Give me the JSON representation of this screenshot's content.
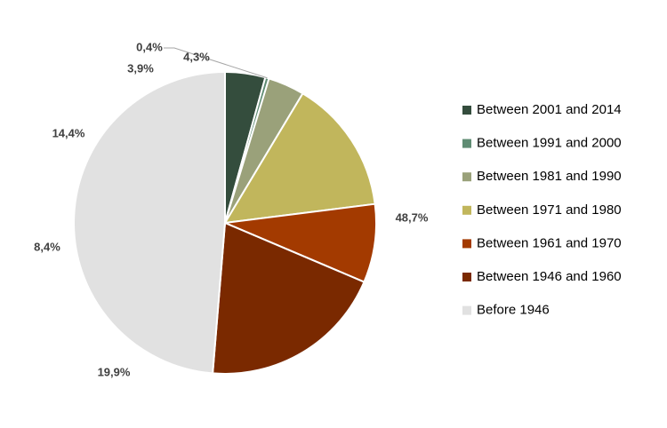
{
  "chart_data": {
    "type": "pie",
    "title": "",
    "legend_position": "right",
    "start_angle_deg": 0,
    "direction": "clockwise",
    "slices": [
      {
        "name": "Between 2001 and 2014",
        "value": 4.3,
        "label": "4,3%",
        "color": "#344d3d"
      },
      {
        "name": "Between 1991 and 2000",
        "value": 0.4,
        "label": "0,4%",
        "color": "#5f8c73"
      },
      {
        "name": "Between 1981 and 1990",
        "value": 3.9,
        "label": "3,9%",
        "color": "#9aa17a"
      },
      {
        "name": "Between 1971 and 1980",
        "value": 14.4,
        "label": "14,4%",
        "color": "#c1b65c"
      },
      {
        "name": "Between 1961 and 1970",
        "value": 8.4,
        "label": "8,4%",
        "color": "#a33a00"
      },
      {
        "name": "Between 1946 and 1960",
        "value": 19.9,
        "label": "19,9%",
        "color": "#7a2900"
      },
      {
        "name": "Before 1946",
        "value": 48.7,
        "label": "48,7%",
        "color": "#e1e1e1"
      }
    ]
  }
}
